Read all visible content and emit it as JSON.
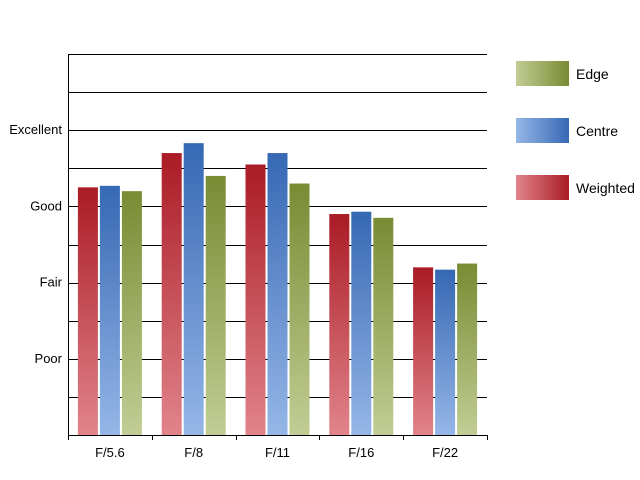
{
  "chart_data": {
    "type": "bar",
    "categories": [
      "F/5.6",
      "F/8",
      "F/11",
      "F/16",
      "F/22"
    ],
    "series": [
      {
        "name": "Weighted",
        "values": [
          3.25,
          3.7,
          3.55,
          2.9,
          2.2
        ],
        "color": "#c8202c"
      },
      {
        "name": "Centre",
        "values": [
          3.27,
          3.83,
          3.7,
          2.93,
          2.17
        ],
        "color": "#3f7ad4"
      },
      {
        "name": "Edge",
        "values": [
          3.2,
          3.4,
          3.3,
          2.85,
          2.25
        ],
        "color": "#8ea43c"
      }
    ],
    "y_ticks": [
      {
        "value": 1,
        "label": "Poor"
      },
      {
        "value": 2,
        "label": "Fair"
      },
      {
        "value": 3,
        "label": "Good"
      },
      {
        "value": 4,
        "label": "Excellent"
      }
    ],
    "ylim": [
      0,
      5
    ],
    "grid": true,
    "legend_position": "right",
    "legend_order": [
      "Edge",
      "Centre",
      "Weighted"
    ]
  }
}
